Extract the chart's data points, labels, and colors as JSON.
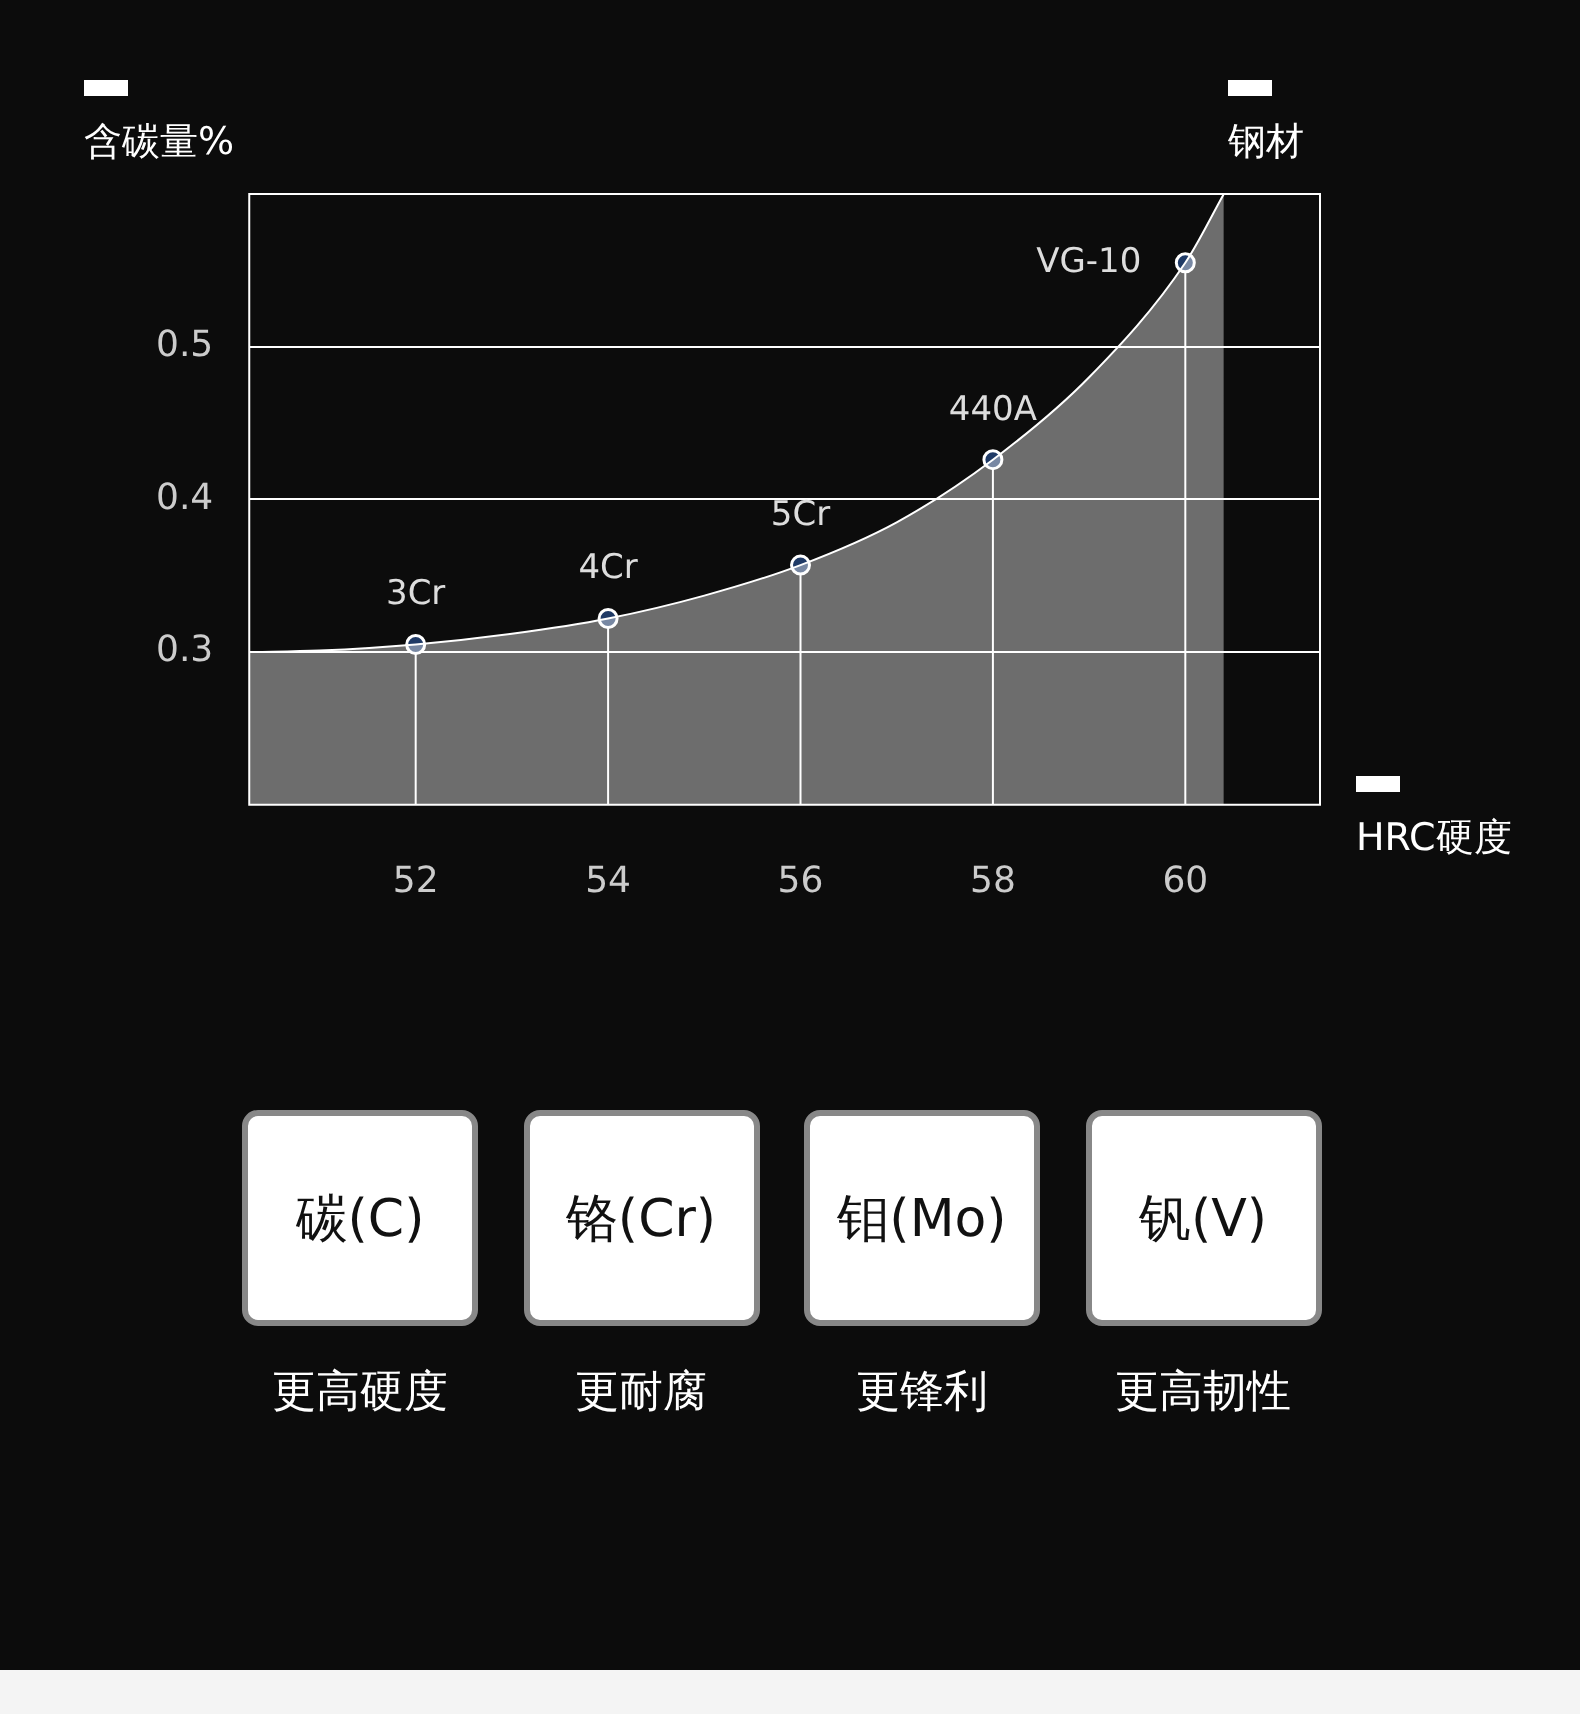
{
  "chart_data": [
    {
      "type": "area",
      "ylabel": "含碳量%",
      "xlabel": "HRC硬度",
      "annotations": [
        "钢材",
        {
          "text": "3Cr",
          "x": 52,
          "y": 0.305
        },
        {
          "text": "4Cr",
          "x": 54,
          "y": 0.322
        },
        {
          "text": "5Cr",
          "x": 56,
          "y": 0.357
        },
        {
          "text": "440A",
          "x": 58,
          "y": 0.426
        },
        {
          "text": "VG-10",
          "x": 60,
          "y": 0.555
        }
      ],
      "series": [
        {
          "type": "area",
          "color": "#ffffff",
          "marker": "none",
          "x": [
            50.27,
            51,
            52,
            53,
            54,
            55,
            56,
            57,
            58,
            59,
            60,
            60.4
          ],
          "values": [
            0.3,
            0.301,
            0.305,
            0.312,
            0.322,
            0.337,
            0.357,
            0.385,
            0.426,
            0.48,
            0.555,
            0.6
          ]
        },
        {
          "type": "scatter",
          "color": "#1f3a66",
          "marker": "circle",
          "x": [
            52,
            54,
            56,
            58,
            60
          ],
          "values": [
            0.305,
            0.322,
            0.357,
            0.426,
            0.555
          ]
        }
      ],
      "xlim": [
        50.27,
        61.4
      ],
      "ylim": [
        0.2,
        0.6
      ],
      "xticks": [
        52,
        54,
        56,
        58,
        60
      ],
      "yticks": [
        0.3,
        0.4,
        0.5
      ],
      "grid": true
    },
    {
      "type": "other",
      "categories": [
        "碳(C)",
        "铬(Cr)",
        "钼(Mo)",
        "钒(V)"
      ],
      "annotations": [
        "更高硬度",
        "更耐腐",
        "更锋利",
        "更高韧性"
      ]
    }
  ]
}
